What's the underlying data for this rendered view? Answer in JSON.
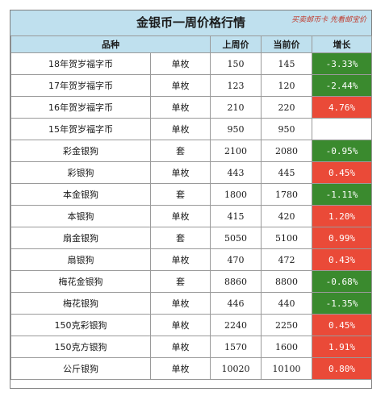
{
  "title": "金银币一周价格行情",
  "tagline": "买卖邮币卡 先看邮宝价",
  "columns": [
    "品种",
    "上周价",
    "当前价",
    "增长"
  ],
  "rows": [
    {
      "name": "18年贺岁福字币",
      "unit": "单枚",
      "last": "150",
      "current": "145",
      "change": "-3.33%",
      "dir": "neg"
    },
    {
      "name": "17年贺岁福字币",
      "unit": "单枚",
      "last": "123",
      "current": "120",
      "change": "-2.44%",
      "dir": "neg"
    },
    {
      "name": "16年贺岁福字币",
      "unit": "单枚",
      "last": "210",
      "current": "220",
      "change": "4.76%",
      "dir": "pos"
    },
    {
      "name": "15年贺岁福字币",
      "unit": "单枚",
      "last": "950",
      "current": "950",
      "change": "",
      "dir": "none"
    },
    {
      "name": "彩金银狗",
      "unit": "套",
      "last": "2100",
      "current": "2080",
      "change": "-0.95%",
      "dir": "neg"
    },
    {
      "name": "彩银狗",
      "unit": "单枚",
      "last": "443",
      "current": "445",
      "change": "0.45%",
      "dir": "pos"
    },
    {
      "name": "本金银狗",
      "unit": "套",
      "last": "1800",
      "current": "1780",
      "change": "-1.11%",
      "dir": "neg"
    },
    {
      "name": "本银狗",
      "unit": "单枚",
      "last": "415",
      "current": "420",
      "change": "1.20%",
      "dir": "pos"
    },
    {
      "name": "扇金银狗",
      "unit": "套",
      "last": "5050",
      "current": "5100",
      "change": "0.99%",
      "dir": "pos"
    },
    {
      "name": "扇银狗",
      "unit": "单枚",
      "last": "470",
      "current": "472",
      "change": "0.43%",
      "dir": "pos"
    },
    {
      "name": "梅花金银狗",
      "unit": "套",
      "last": "8860",
      "current": "8800",
      "change": "-0.68%",
      "dir": "neg"
    },
    {
      "name": "梅花银狗",
      "unit": "单枚",
      "last": "446",
      "current": "440",
      "change": "-1.35%",
      "dir": "neg"
    },
    {
      "name": "150克彩银狗",
      "unit": "单枚",
      "last": "2240",
      "current": "2250",
      "change": "0.45%",
      "dir": "pos"
    },
    {
      "name": "150克方银狗",
      "unit": "单枚",
      "last": "1570",
      "current": "1600",
      "change": "1.91%",
      "dir": "pos"
    },
    {
      "name": "公斤银狗",
      "unit": "单枚",
      "last": "10020",
      "current": "10100",
      "change": "0.80%",
      "dir": "pos"
    }
  ],
  "colors": {
    "increase": "#ea4a38",
    "decrease": "#3a8a2e",
    "header": "#bfe0ee"
  }
}
